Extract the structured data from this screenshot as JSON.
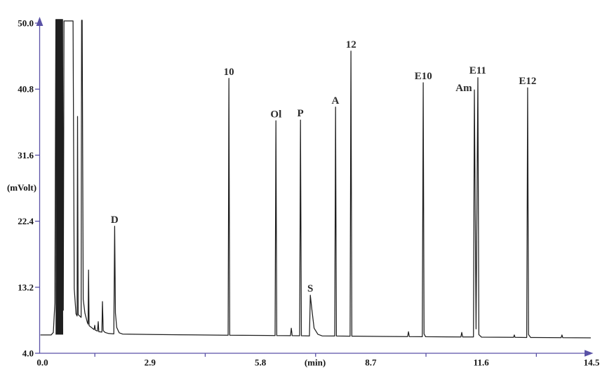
{
  "chart_data": {
    "type": "line",
    "title": "",
    "description": "Gas chromatogram trace, signal (mVolt) vs retention time (min)",
    "xlabel": "(min)",
    "ylabel": "(mVolt)",
    "xlim": [
      0.0,
      14.5
    ],
    "ylim": [
      4.0,
      50.0
    ],
    "x_major_tick_labels": [
      0.0,
      2.9,
      5.8,
      8.7,
      11.6,
      14.5
    ],
    "x_minor_ticks": [
      1.45,
      4.35,
      7.25,
      10.15,
      13.05
    ],
    "y_ticks": [
      4.0,
      13.2,
      22.4,
      31.6,
      40.8,
      50.0
    ],
    "grid": false,
    "legend": false,
    "axis_color": "#5a52a6",
    "trace_color": "#1f1f1f",
    "peak_label_color": "#2b2b2b",
    "baseline_mv": 6.5,
    "clip_level_mv": 50.4,
    "peaks": [
      {
        "label": "D",
        "t": 1.97,
        "mv": 21.7
      },
      {
        "label": "10",
        "t": 4.97,
        "mv": 42.3
      },
      {
        "label": "Ol",
        "t": 6.21,
        "mv": 36.4
      },
      {
        "label": "P",
        "t": 6.85,
        "mv": 36.5
      },
      {
        "label": "S",
        "t": 7.11,
        "mv": 12.1
      },
      {
        "label": "A",
        "t": 7.77,
        "mv": 38.3
      },
      {
        "label": "12",
        "t": 8.18,
        "mv": 46.1
      },
      {
        "label": "E10",
        "t": 10.08,
        "mv": 41.7
      },
      {
        "label": "Am",
        "t": 11.42,
        "mv": 40.7,
        "dx": -15,
        "dy": 7
      },
      {
        "label": "E11",
        "t": 11.51,
        "mv": 42.4,
        "dy": -1
      },
      {
        "label": "E12",
        "t": 12.82,
        "mv": 41.0
      }
    ],
    "solvent_fill": [
      [
        0.418,
        6.6
      ],
      [
        0.425,
        50.5
      ],
      [
        0.603,
        50.5
      ],
      [
        0.617,
        6.6
      ]
    ],
    "trace": [
      [
        0.02,
        6.55
      ],
      [
        0.3,
        6.55
      ],
      [
        0.36,
        6.9
      ],
      [
        0.4,
        11.0
      ],
      [
        0.425,
        50.5
      ],
      [
        0.603,
        50.5
      ],
      [
        0.622,
        10.0
      ],
      [
        0.64,
        50.3
      ],
      [
        0.878,
        50.3
      ],
      [
        0.908,
        13.0
      ],
      [
        0.955,
        9.5
      ],
      [
        0.985,
        9.2
      ],
      [
        0.995,
        37.0
      ],
      [
        1.012,
        9.4
      ],
      [
        1.09,
        9.0
      ],
      [
        1.103,
        50.4
      ],
      [
        1.118,
        50.4
      ],
      [
        1.145,
        11.5
      ],
      [
        1.19,
        9.6
      ],
      [
        1.25,
        8.35
      ],
      [
        1.272,
        8.05
      ],
      [
        1.285,
        15.6
      ],
      [
        1.3,
        7.85
      ],
      [
        1.43,
        7.3
      ],
      [
        1.447,
        7.9
      ],
      [
        1.465,
        7.2
      ],
      [
        1.52,
        7.1
      ],
      [
        1.539,
        8.4
      ],
      [
        1.555,
        7.0
      ],
      [
        1.635,
        6.95
      ],
      [
        1.65,
        11.2
      ],
      [
        1.67,
        7.15
      ],
      [
        1.72,
        6.9
      ],
      [
        1.81,
        6.75
      ],
      [
        1.948,
        6.7
      ],
      [
        1.97,
        21.7
      ],
      [
        1.992,
        9.6
      ],
      [
        2.025,
        7.6
      ],
      [
        2.09,
        6.85
      ],
      [
        2.18,
        6.68
      ],
      [
        3.0,
        6.62
      ],
      [
        4.0,
        6.56
      ],
      [
        4.9,
        6.52
      ],
      [
        4.952,
        6.52
      ],
      [
        4.973,
        42.3
      ],
      [
        4.995,
        6.52
      ],
      [
        6.185,
        6.47
      ],
      [
        6.208,
        36.4
      ],
      [
        6.23,
        6.47
      ],
      [
        6.59,
        6.45
      ],
      [
        6.612,
        7.5
      ],
      [
        6.635,
        6.45
      ],
      [
        6.83,
        6.44
      ],
      [
        6.853,
        36.5
      ],
      [
        6.876,
        6.44
      ],
      [
        7.088,
        6.42
      ],
      [
        7.111,
        12.1
      ],
      [
        7.15,
        10.2
      ],
      [
        7.21,
        7.5
      ],
      [
        7.31,
        6.65
      ],
      [
        7.42,
        6.42
      ],
      [
        7.752,
        6.4
      ],
      [
        7.774,
        38.3
      ],
      [
        7.797,
        6.4
      ],
      [
        8.157,
        6.38
      ],
      [
        8.179,
        46.1
      ],
      [
        8.202,
        6.38
      ],
      [
        9.0,
        6.34
      ],
      [
        9.668,
        6.32
      ],
      [
        9.69,
        7.0
      ],
      [
        9.713,
        6.32
      ],
      [
        10.054,
        6.3
      ],
      [
        10.077,
        41.7
      ],
      [
        10.1,
        6.7
      ],
      [
        10.14,
        6.3
      ],
      [
        11.067,
        6.27
      ],
      [
        11.09,
        6.9
      ],
      [
        11.113,
        6.27
      ],
      [
        11.398,
        6.27
      ],
      [
        11.421,
        40.7
      ],
      [
        11.465,
        7.4
      ],
      [
        11.513,
        42.4
      ],
      [
        11.54,
        6.6
      ],
      [
        11.61,
        6.25
      ],
      [
        12.45,
        6.22
      ],
      [
        12.47,
        6.55
      ],
      [
        12.49,
        6.22
      ],
      [
        12.797,
        6.2
      ],
      [
        12.82,
        41.0
      ],
      [
        12.845,
        6.6
      ],
      [
        12.9,
        6.2
      ],
      [
        13.7,
        6.17
      ],
      [
        13.722,
        6.55
      ],
      [
        13.745,
        6.17
      ],
      [
        14.48,
        6.15
      ]
    ]
  }
}
